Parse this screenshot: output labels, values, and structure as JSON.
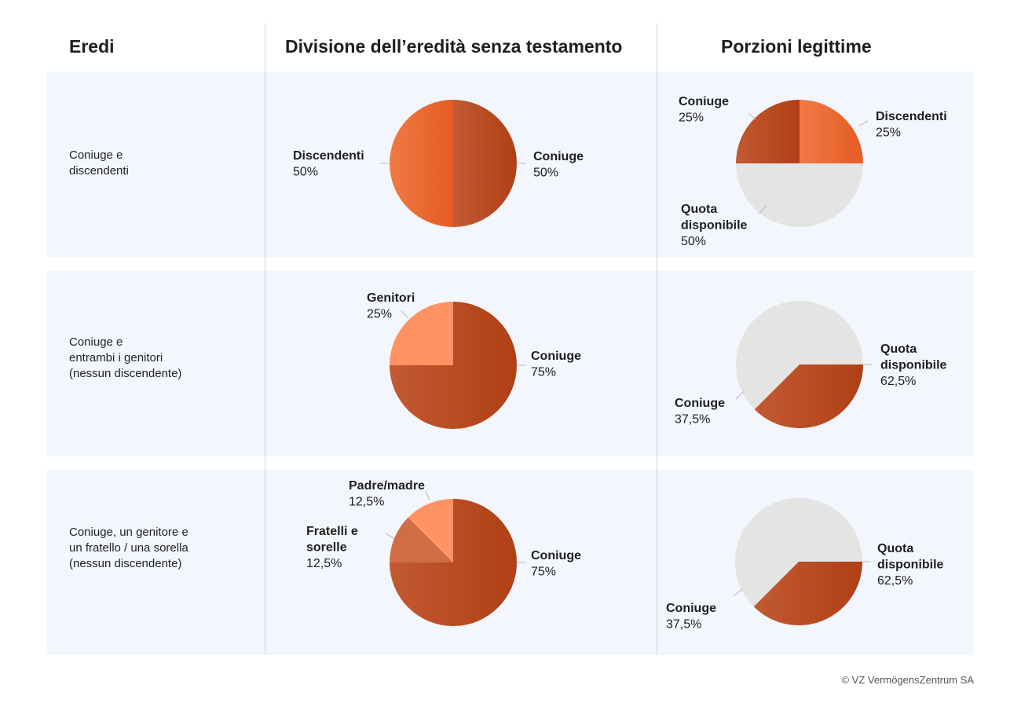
{
  "headers": {
    "heirs": "Eredi",
    "division": "Divisione dell’eredità senza testamento",
    "legitimate": "Porzioni legittime"
  },
  "colors": {
    "coniuge": "#b74a22",
    "discendenti": "#e9662d",
    "genitori": "#ff9363",
    "padre_madre": "#ff9363",
    "fratelli": "#cf6e45",
    "quota": "#e4e4e4",
    "row_bg": "#f3f6fc"
  },
  "rows": [
    {
      "label": [
        "Coniuge e",
        "discendenti"
      ]
    },
    {
      "label": [
        "Coniuge e",
        "entrambi i genitori",
        "(nessun discendente)"
      ]
    },
    {
      "label": [
        "Coniuge, un genitore e",
        "un fratello / una sorella",
        "(nessun discendente)"
      ]
    }
  ],
  "chart_data": [
    {
      "type": "pie",
      "slices": [
        {
          "name": [
            "Coniuge"
          ],
          "value": 50,
          "pct": "50%",
          "color": "coniuge"
        },
        {
          "name": [
            "Discendenti"
          ],
          "value": 50,
          "pct": "50%",
          "color": "discendenti"
        }
      ]
    },
    {
      "type": "pie",
      "slices": [
        {
          "name": [
            "Discendenti"
          ],
          "value": 25,
          "pct": "25%",
          "color": "discendenti"
        },
        {
          "name": [
            "Quota",
            "disponibile"
          ],
          "value": 50,
          "pct": "50%",
          "color": "quota"
        },
        {
          "name": [
            "Coniuge"
          ],
          "value": 25,
          "pct": "25%",
          "color": "coniuge"
        }
      ]
    },
    {
      "type": "pie",
      "slices": [
        {
          "name": [
            "Coniuge"
          ],
          "value": 75,
          "pct": "75%",
          "color": "coniuge"
        },
        {
          "name": [
            "Genitori"
          ],
          "value": 25,
          "pct": "25%",
          "color": "genitori"
        }
      ]
    },
    {
      "type": "pie",
      "slices": [
        {
          "name": [
            "Quota",
            "disponibile"
          ],
          "value": 62.5,
          "pct": "62,5%",
          "color": "quota"
        },
        {
          "name": [
            "Coniuge"
          ],
          "value": 37.5,
          "pct": "37,5%",
          "color": "coniuge"
        }
      ]
    },
    {
      "type": "pie",
      "slices": [
        {
          "name": [
            "Coniuge"
          ],
          "value": 75,
          "pct": "75%",
          "color": "coniuge"
        },
        {
          "name": [
            "Fratelli e",
            "sorelle"
          ],
          "value": 12.5,
          "pct": "12,5%",
          "color": "fratelli"
        },
        {
          "name": [
            "Padre/madre"
          ],
          "value": 12.5,
          "pct": "12,5%",
          "color": "padre_madre"
        }
      ]
    },
    {
      "type": "pie",
      "slices": [
        {
          "name": [
            "Quota",
            "disponibile"
          ],
          "value": 62.5,
          "pct": "62,5%",
          "color": "quota"
        },
        {
          "name": [
            "Coniuge"
          ],
          "value": 37.5,
          "pct": "37,5%",
          "color": "coniuge"
        }
      ]
    }
  ],
  "footer": "© VZ VermögensZentrum SA"
}
